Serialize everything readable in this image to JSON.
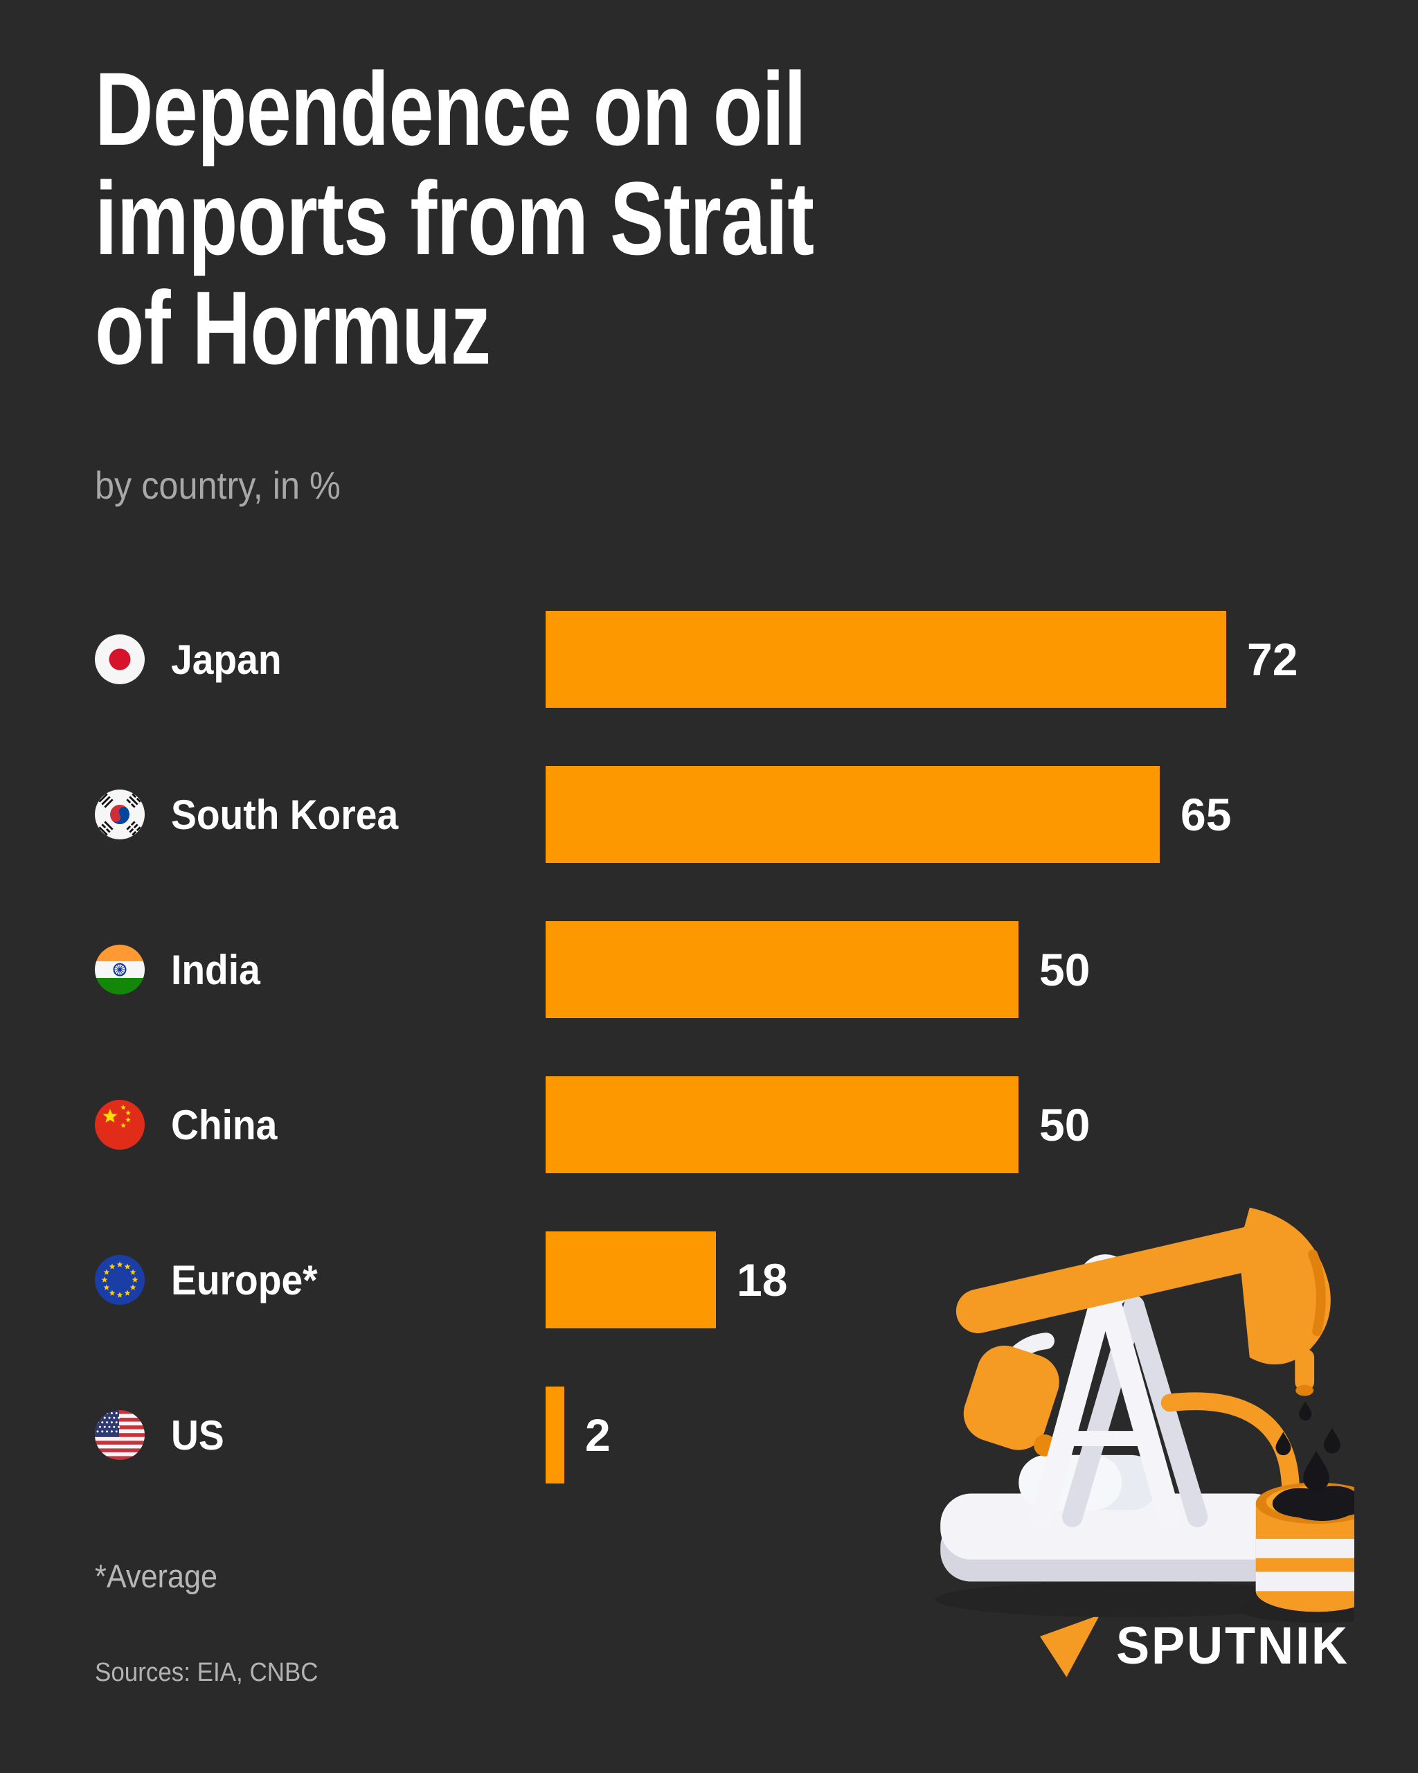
{
  "poster": {
    "title": "Dependence on oil\nimports from Strait\nof Hormuz",
    "subtitle": "by country, in %",
    "footnote": "*Average",
    "sources": "Sources: EIA, CNBC",
    "brand": "SPUTNIK"
  },
  "colors": {
    "background": "#2b2a2a",
    "bar": "#fd9801",
    "title_text": "#ffffff",
    "muted_text": "#a8a8a8",
    "logo_accent": "#f59a23"
  },
  "chart_data": {
    "type": "bar",
    "orientation": "horizontal",
    "title": "Dependence on oil imports from Strait of Hormuz",
    "subtitle": "by country, in %",
    "unit": "%",
    "categories": [
      "Japan",
      "South Korea",
      "India",
      "China",
      "Europe*",
      "US"
    ],
    "values": [
      72,
      65,
      50,
      50,
      18,
      2
    ],
    "bars": [
      {
        "label": "Japan",
        "value": 72,
        "flag": "flag-japan"
      },
      {
        "label": "South Korea",
        "value": 65,
        "flag": "flag-south-korea"
      },
      {
        "label": "India",
        "value": 50,
        "flag": "flag-india"
      },
      {
        "label": "China",
        "value": 50,
        "flag": "flag-china"
      },
      {
        "label": "Europe*",
        "value": 18,
        "flag": "flag-european-union"
      },
      {
        "label": "US",
        "value": 2,
        "flag": "flag-united-states"
      }
    ],
    "xlim": [
      0,
      72
    ],
    "bar_color": "#fd9801",
    "value_labels": "outside-end",
    "grid": false,
    "legend": false,
    "footnote": "*Average",
    "sources": "Sources: EIA, CNBC"
  },
  "illustration": "oil-pumpjack-and-barrel"
}
